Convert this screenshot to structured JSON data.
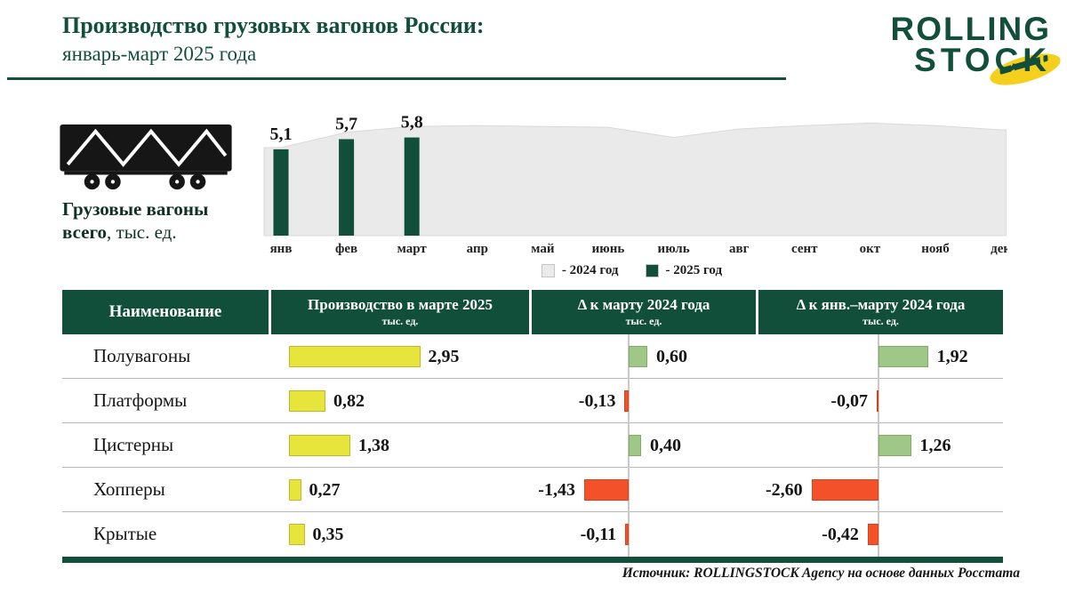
{
  "header": {
    "title_line1": "Производство грузовых вагонов России:",
    "title_line2": "январь-март 2025 года",
    "accent_color": "#124f3a",
    "logo_line1": "ROLLING",
    "logo_line2": "STOCK",
    "logo_accent_color": "#f4cf1b"
  },
  "side_label": {
    "bold_line1": "Грузовые вагоны",
    "bold_line2": "всего",
    "regular": ", тыс. ед."
  },
  "chart_data": [
    {
      "type": "bar",
      "title": "Грузовые вагоны всего, тыс. ед.",
      "x": [
        "янв",
        "фев",
        "март",
        "апр",
        "май",
        "июнь",
        "июль",
        "авг",
        "сент",
        "окт",
        "нояб",
        "дек"
      ],
      "series": [
        {
          "name": "2024 год",
          "type": "area",
          "color": "#eaeaea",
          "values": [
            5.2,
            6.1,
            6.45,
            6.5,
            6.45,
            6.4,
            5.8,
            6.3,
            6.5,
            6.65,
            6.5,
            6.25
          ]
        },
        {
          "name": "2025 год",
          "type": "bar",
          "color": "#124f3a",
          "values": [
            5.1,
            5.7,
            5.8
          ],
          "labels": [
            "5,1",
            "5,7",
            "5,8"
          ]
        }
      ],
      "ylim": [
        0,
        7.3
      ],
      "grid": false,
      "legend_position": "bottom",
      "legend": [
        {
          "label": "- 2024 год",
          "color": "#eaeaea"
        },
        {
          "label": "- 2025 год",
          "color": "#124f3a"
        }
      ]
    },
    {
      "type": "table",
      "columns": [
        {
          "title": "Наименование",
          "sub": ""
        },
        {
          "title": "Производство в марте 2025",
          "sub": "тыс. ед."
        },
        {
          "title": "Δ к марту 2024 года",
          "sub": "тыс. ед."
        },
        {
          "title": "Δ к янв.–марту 2024 года",
          "sub": "тыс. ед."
        }
      ],
      "rows": [
        {
          "name": "Полувагоны",
          "production": 2.95,
          "production_label": "2,95",
          "delta_march": 0.6,
          "delta_march_label": "0,60",
          "delta_jan_march": 1.92,
          "delta_jan_march_label": "1,92"
        },
        {
          "name": "Платформы",
          "production": 0.82,
          "production_label": "0,82",
          "delta_march": -0.13,
          "delta_march_label": "-0,13",
          "delta_jan_march": -0.07,
          "delta_jan_march_label": "-0,07"
        },
        {
          "name": "Цистерны",
          "production": 1.38,
          "production_label": "1,38",
          "delta_march": 0.4,
          "delta_march_label": "0,40",
          "delta_jan_march": 1.26,
          "delta_jan_march_label": "1,26"
        },
        {
          "name": "Хопперы",
          "production": 0.27,
          "production_label": "0,27",
          "delta_march": -1.43,
          "delta_march_label": "-1,43",
          "delta_jan_march": -2.6,
          "delta_jan_march_label": "-2,60"
        },
        {
          "name": "Крытые",
          "production": 0.35,
          "production_label": "0,35",
          "delta_march": -0.11,
          "delta_march_label": "-0,11",
          "delta_jan_march": -0.42,
          "delta_jan_march_label": "-0,42"
        }
      ],
      "bar_colors": {
        "production": "#e7e43c",
        "positive": "#9fc787",
        "negative": "#f3512a"
      }
    }
  ],
  "footer": {
    "source": "Источник: ROLLINGSTOCK Agency на основе данных Росстата"
  }
}
